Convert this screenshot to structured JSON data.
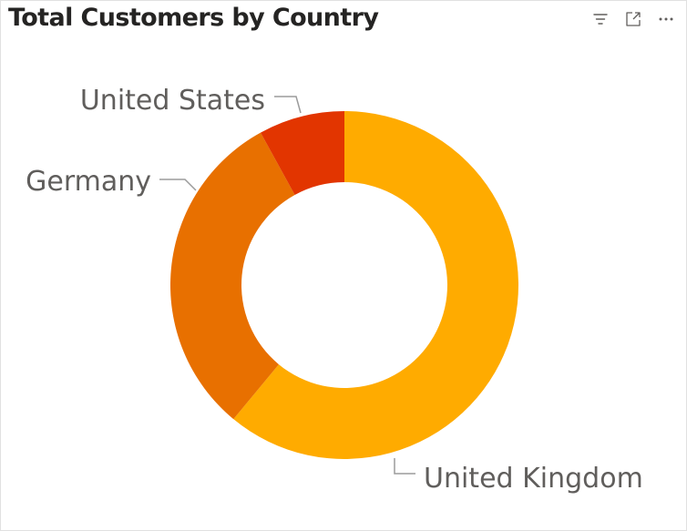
{
  "visual": {
    "title": "Total Customers by Country"
  },
  "header_icons": [
    {
      "name": "filter-icon"
    },
    {
      "name": "focus-mode-icon"
    },
    {
      "name": "more-options-icon"
    }
  ],
  "chart_data": {
    "type": "pie",
    "donut": true,
    "title": "Total Customers by Country",
    "categories": [
      "United Kingdom",
      "Germany",
      "United States"
    ],
    "values": [
      61,
      31,
      8
    ],
    "value_unit": "percent of total (estimated)",
    "colors": [
      "#FFAB00",
      "#E87000",
      "#E23500"
    ],
    "legend": "none",
    "data_labels": "category"
  }
}
